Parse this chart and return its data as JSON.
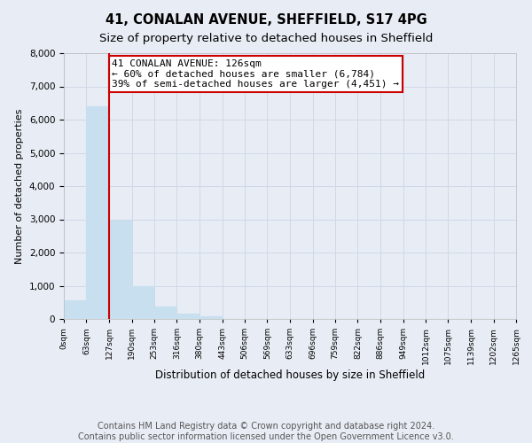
{
  "title": "41, CONALAN AVENUE, SHEFFIELD, S17 4PG",
  "subtitle": "Size of property relative to detached houses in Sheffield",
  "xlabel": "Distribution of detached houses by size in Sheffield",
  "ylabel": "Number of detached properties",
  "bar_edges": [
    0,
    63,
    127,
    190,
    253,
    316,
    380,
    443,
    506,
    569,
    633,
    696,
    759,
    822,
    886,
    949,
    1012,
    1075,
    1139,
    1202,
    1265
  ],
  "bar_heights": [
    560,
    6400,
    2950,
    980,
    380,
    170,
    70,
    0,
    0,
    0,
    0,
    0,
    0,
    0,
    0,
    0,
    0,
    0,
    0,
    0
  ],
  "bar_color": "#c8dff0",
  "bar_edgecolor": "#c8dff0",
  "property_line_x": 127,
  "property_line_color": "#cc0000",
  "annotation_text": "41 CONALAN AVENUE: 126sqm\n← 60% of detached houses are smaller (6,784)\n39% of semi-detached houses are larger (4,451) →",
  "annotation_box_edgecolor": "#cc0000",
  "annotation_box_facecolor": "#ffffff",
  "ylim": [
    0,
    8000
  ],
  "yticks": [
    0,
    1000,
    2000,
    3000,
    4000,
    5000,
    6000,
    7000,
    8000
  ],
  "xtick_labels": [
    "0sqm",
    "63sqm",
    "127sqm",
    "190sqm",
    "253sqm",
    "316sqm",
    "380sqm",
    "443sqm",
    "506sqm",
    "569sqm",
    "633sqm",
    "696sqm",
    "759sqm",
    "822sqm",
    "886sqm",
    "949sqm",
    "1012sqm",
    "1075sqm",
    "1139sqm",
    "1202sqm",
    "1265sqm"
  ],
  "grid_color": "#d0d8e8",
  "bg_color": "#e8edf5",
  "footer_text": "Contains HM Land Registry data © Crown copyright and database right 2024.\nContains public sector information licensed under the Open Government Licence v3.0.",
  "title_fontsize": 10.5,
  "subtitle_fontsize": 9.5,
  "annotation_fontsize": 8,
  "footer_fontsize": 7,
  "ylabel_fontsize": 8,
  "xlabel_fontsize": 8.5
}
